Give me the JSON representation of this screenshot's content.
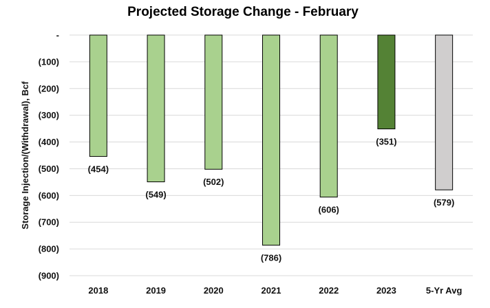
{
  "chart_data": {
    "type": "bar",
    "title": "Projected Storage Change - February",
    "xlabel": "",
    "ylabel": "Storage Injection/(Withdrawal), Bcf",
    "categories": [
      "2018",
      "2019",
      "2020",
      "2021",
      "2022",
      "2023",
      "5-Yr Avg"
    ],
    "values": [
      -454,
      -549,
      -502,
      -786,
      -606,
      -351,
      -579
    ],
    "data_labels": [
      "(454)",
      "(549)",
      "(502)",
      "(786)",
      "(606)",
      "(351)",
      "(579)"
    ],
    "ylim": [
      -900,
      0
    ],
    "y_ticks": [
      0,
      -100,
      -200,
      -300,
      -400,
      -500,
      -600,
      -700,
      -800,
      -900
    ],
    "y_tick_labels": [
      "-",
      "(100)",
      "(200)",
      "(300)",
      "(400)",
      "(500)",
      "(600)",
      "(700)",
      "(800)",
      "(900)"
    ],
    "grid": true,
    "legend": "none",
    "bar_colors": [
      "#a9d18e",
      "#a9d18e",
      "#a9d18e",
      "#a9d18e",
      "#a9d18e",
      "#548235",
      "#d0cece"
    ],
    "bar_outline_color": "#000000",
    "gridline_color": "#d9d9d9"
  }
}
